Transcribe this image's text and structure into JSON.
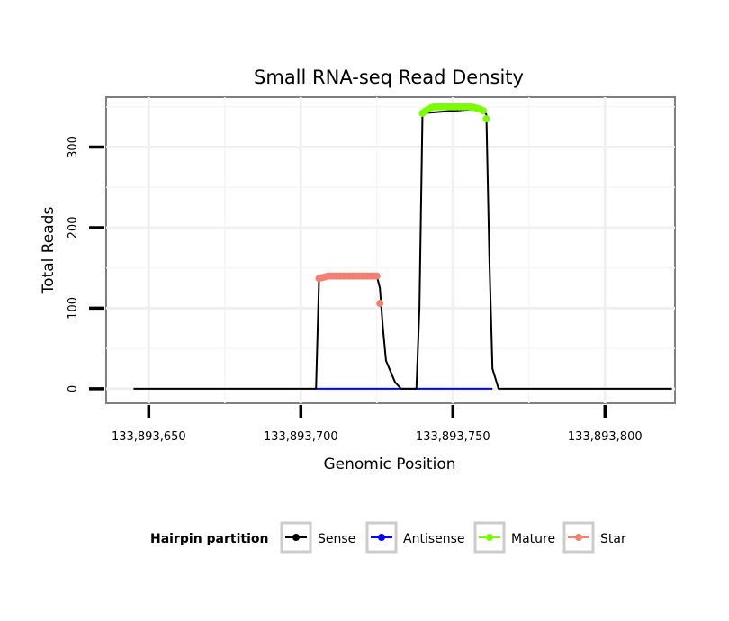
{
  "chart_data": {
    "type": "line",
    "title": "Small RNA-seq Read Density",
    "xlabel": "Genomic Position",
    "ylabel": "Total Reads",
    "xlim": [
      133893636,
      133893823
    ],
    "ylim": [
      -18,
      362
    ],
    "x_ticks": [
      133893650,
      133893700,
      133893750,
      133893800
    ],
    "x_tick_labels": [
      "133,893,650",
      "133,893,700",
      "133,893,750",
      "133,893,800"
    ],
    "y_ticks": [
      0,
      100,
      200,
      300
    ],
    "y_tick_labels": [
      "0",
      "100",
      "200",
      "300"
    ],
    "grid": true,
    "legend": {
      "title": "Hairpin partition",
      "position": "bottom",
      "entries": [
        {
          "label": "Sense",
          "color": "#000000"
        },
        {
          "label": "Antisense",
          "color": "#0000ff"
        },
        {
          "label": "Mature",
          "color": "#7cfc00"
        },
        {
          "label": "Star",
          "color": "#f08070"
        }
      ]
    },
    "series": [
      {
        "name": "Sense",
        "color": "#000000",
        "x": [
          133893645,
          133893705,
          133893706,
          133893725,
          133893726,
          133893727,
          133893728,
          133893731,
          133893733,
          133893738,
          133893739,
          133893740,
          133893760,
          133893761,
          133893762,
          133893763,
          133893765,
          133893822
        ],
        "y": [
          0,
          0,
          137,
          140,
          125,
          75,
          35,
          8,
          0,
          0,
          100,
          342,
          348,
          340,
          160,
          25,
          0,
          0
        ]
      },
      {
        "name": "Antisense",
        "color": "#0000ff",
        "x": [
          133893705,
          133893763
        ],
        "y": [
          0,
          0
        ]
      },
      {
        "name": "Mature",
        "color": "#7cfc00",
        "x": [
          133893740,
          133893741,
          133893742,
          133893743,
          133893744,
          133893745,
          133893746,
          133893747,
          133893748,
          133893749,
          133893750,
          133893751,
          133893752,
          133893753,
          133893754,
          133893755,
          133893756,
          133893757,
          133893758,
          133893759,
          133893760,
          133893761
        ],
        "y": [
          342,
          345,
          347,
          349,
          350,
          350,
          350,
          350,
          350,
          350,
          350,
          350,
          350,
          350,
          350,
          350,
          350,
          349,
          348,
          347,
          345,
          335
        ]
      },
      {
        "name": "Star",
        "color": "#f08070",
        "x": [
          133893706,
          133893707,
          133893708,
          133893709,
          133893710,
          133893711,
          133893712,
          133893713,
          133893714,
          133893715,
          133893716,
          133893717,
          133893718,
          133893719,
          133893720,
          133893721,
          133893722,
          133893723,
          133893724,
          133893725,
          133893726
        ],
        "y": [
          137,
          138,
          139,
          140,
          140,
          140,
          140,
          140,
          140,
          140,
          140,
          140,
          140,
          140,
          140,
          140,
          140,
          140,
          140,
          140,
          106
        ]
      }
    ]
  }
}
